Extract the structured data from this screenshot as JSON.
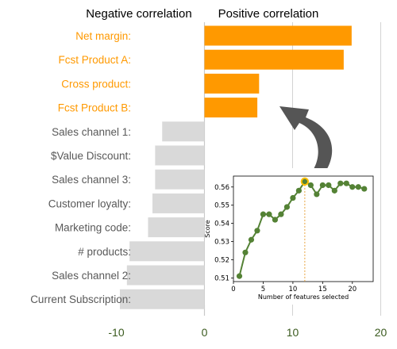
{
  "headers": {
    "negative": "Negative correlation",
    "positive": "Positive correlation"
  },
  "colors": {
    "positive": "#FF9900",
    "negative_bar": "#D9D9D9",
    "negative_text": "#595959",
    "header_negative": "#808080",
    "axis_tick": "#3A5A1E",
    "gridline": "#C8C8C8",
    "arrow": "#555555",
    "inset_line": "#548235",
    "inset_marker_face": "#548235",
    "highlight_ring": "#FFC000",
    "inset_vline": "#E8A33D"
  },
  "chart_data": [
    {
      "type": "bar",
      "orientation": "horizontal",
      "categories": [
        "Net margin:",
        "Fcst Product A:",
        "Cross product:",
        "Fcst Product B:",
        "Sales channel 1:",
        "$Value Discount:",
        "Sales channel 3:",
        "Customer loyalty:",
        "Marketing code:",
        "# products:",
        "Sales channel 2:",
        "Current Subscription:"
      ],
      "values": [
        16.7,
        15.8,
        6.2,
        6.0,
        -4.8,
        -5.6,
        -5.6,
        -5.9,
        -6.4,
        -8.5,
        -8.8,
        -9.6
      ],
      "xlim": [
        -10,
        20
      ],
      "xticks": [
        -10,
        0,
        10,
        20
      ],
      "tick_labels": [
        "-10",
        "0",
        "10",
        "20"
      ],
      "grid": "vertical"
    },
    {
      "type": "line",
      "x": [
        1,
        2,
        3,
        4,
        5,
        6,
        7,
        8,
        9,
        10,
        11,
        12,
        13,
        14,
        15,
        16,
        17,
        18,
        19,
        20,
        21,
        22
      ],
      "y": [
        0.511,
        0.524,
        0.531,
        0.536,
        0.545,
        0.545,
        0.542,
        0.545,
        0.549,
        0.554,
        0.558,
        0.563,
        0.561,
        0.556,
        0.561,
        0.561,
        0.558,
        0.562,
        0.562,
        0.56,
        0.56,
        0.559
      ],
      "xlabel": "Number of features selected",
      "ylabel": "Score",
      "xlim": [
        0,
        23.5
      ],
      "ylim": [
        0.508,
        0.566
      ],
      "xticks": [
        0,
        5,
        10,
        15,
        20
      ],
      "yticks": [
        0.51,
        0.52,
        0.53,
        0.54,
        0.55,
        0.56
      ],
      "xtick_labels": [
        "0",
        "5",
        "10",
        "15",
        "20"
      ],
      "ytick_labels": [
        "0.51",
        "0.52",
        "0.53",
        "0.54",
        "0.55",
        "0.56"
      ],
      "highlight_x": 12
    }
  ]
}
